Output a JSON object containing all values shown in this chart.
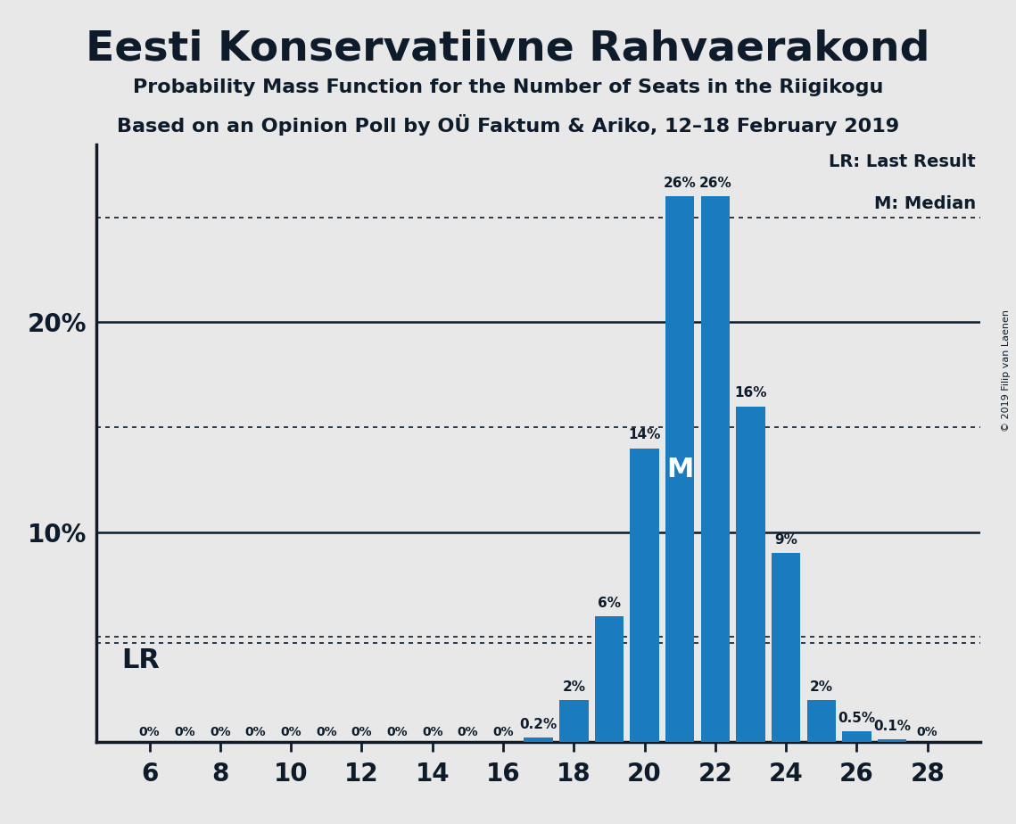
{
  "title": "Eesti Konservatiivne Rahvaerakond",
  "subtitle1": "Probability Mass Function for the Number of Seats in the Riigikogu",
  "subtitle2": "Based on an Opinion Poll by OÜ Faktum & Ariko, 12–18 February 2019",
  "copyright": "© 2019 Filip van Laenen",
  "seats": [
    6,
    7,
    8,
    9,
    10,
    11,
    12,
    13,
    14,
    15,
    16,
    17,
    18,
    19,
    20,
    21,
    22,
    23,
    24,
    25,
    26,
    27,
    28
  ],
  "probabilities": [
    0.0,
    0.0,
    0.0,
    0.0,
    0.0,
    0.0,
    0.0,
    0.0,
    0.0,
    0.0,
    0.0,
    0.2,
    2.0,
    6.0,
    14.0,
    26.0,
    26.0,
    16.0,
    9.0,
    2.0,
    0.5,
    0.1,
    0.0
  ],
  "bar_color": "#1a7bbf",
  "background_color": "#e8e8e8",
  "title_color": "#0d1b2a",
  "axis_color": "#0d1b2a",
  "lr_value": 4.7,
  "median_seat": 21,
  "xlim": [
    4.5,
    29.5
  ],
  "ylim": [
    0,
    28.5
  ],
  "xticks": [
    6,
    8,
    10,
    12,
    14,
    16,
    18,
    20,
    22,
    24,
    26,
    28
  ],
  "solid_gridlines": [
    10,
    20
  ],
  "dotted_gridlines": [
    5,
    15,
    25
  ],
  "legend_lr": "LR: Last Result",
  "legend_m": "M: Median",
  "lr_label": "LR",
  "m_label": "M",
  "bar_label_fontsize": 11,
  "zero_label_fontsize": 10,
  "tick_fontsize": 20,
  "ytick_labels": [
    10,
    20
  ],
  "title_fontsize": 34,
  "subtitle1_fontsize": 16,
  "subtitle2_fontsize": 16,
  "legend_fontsize": 14,
  "lr_fontsize": 22,
  "m_fontsize": 22,
  "copyright_fontsize": 8
}
